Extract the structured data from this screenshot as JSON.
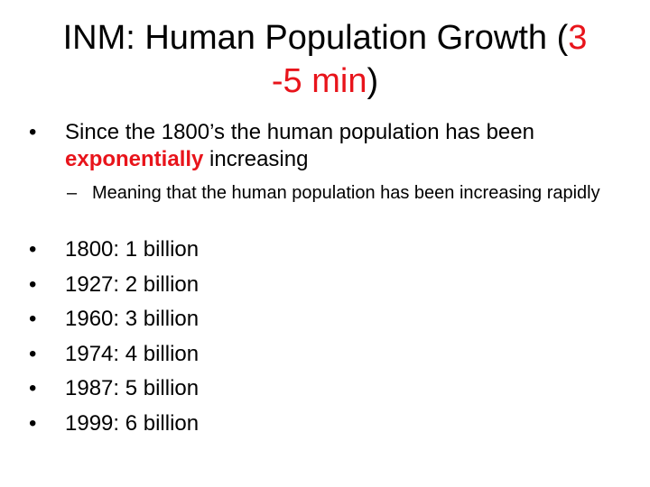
{
  "title": {
    "part1": "INM: Human Population Growth (",
    "highlight1": "3",
    "highlight2": "-5 min",
    "part2": ")"
  },
  "main_bullet": {
    "before": "Since the 1800’s the human population has been ",
    "emphasis": "exponentially",
    "after": " increasing"
  },
  "sub_bullet": {
    "dash": "–",
    "text": "Meaning that the human population has been increasing rapidly"
  },
  "bullet_glyph": "•",
  "population": [
    {
      "text": "1800: 1 billion"
    },
    {
      "text": "1927: 2 billion"
    },
    {
      "text": "1960: 3 billion"
    },
    {
      "text": "1974: 4 billion"
    },
    {
      "text": "1987: 5 billion"
    },
    {
      "text": "1999: 6 billion"
    }
  ],
  "colors": {
    "accent": "#e8141b"
  }
}
